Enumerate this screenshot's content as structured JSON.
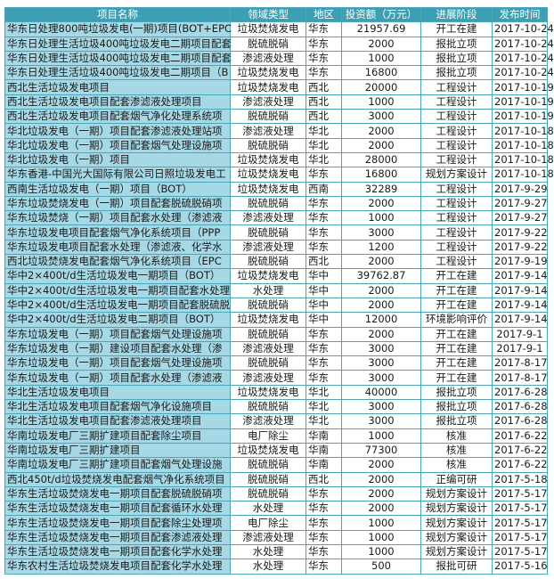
{
  "colors": {
    "header_bg": "#3d9fb3",
    "name_col_bg": "#a6d8e5",
    "border": "#4aa6b8"
  },
  "table": {
    "headers": [
      "项目名称",
      "领域类型",
      "地区",
      "投资额（万元）",
      "进展阶段",
      "发布时间"
    ],
    "rows": [
      [
        "华东日处理800吨垃圾发电(一期)项目(BOT+EPC",
        "垃圾焚烧发电",
        "华东",
        "21957.69",
        "开工在建",
        "2017-10-24"
      ],
      [
        "华东日处理生活垃圾400吨垃圾发电二期项目配套",
        "脱硫脱硝",
        "华东",
        "2000",
        "报批立项",
        "2017-10-24"
      ],
      [
        "华东日处理生活垃圾400吨垃圾发电二期项目配套",
        "渗滤液处理",
        "华东",
        "1000",
        "报批立项",
        "2017-10-24"
      ],
      [
        "华东日处理生活垃圾400吨垃圾发电二期项目（B",
        "垃圾焚烧发电",
        "华东",
        "16800",
        "报批立项",
        "2017-10-24"
      ],
      [
        "西北生活垃圾发电项目",
        "垃圾焚烧发电",
        "西北",
        "20000",
        "工程设计",
        "2017-10-19"
      ],
      [
        "西北生活垃圾发电项目配套渗滤液处理项目",
        "渗滤液处理",
        "西北",
        "1000",
        "工程设计",
        "2017-10-19"
      ],
      [
        "西北生活垃圾发电项目配套烟气净化处理系统项",
        "脱硫脱硝",
        "西北",
        "3000",
        "工程设计",
        "2017-10-19"
      ],
      [
        "华北垃圾发电（一期）项目配套渗滤液处理站项",
        "渗滤液处理",
        "华北",
        "2000",
        "工程设计",
        "2017-10-18"
      ],
      [
        "华北垃圾发电（一期）项目配套烟气处理设施项",
        "脱硫脱硝",
        "华北",
        "2000",
        "工程设计",
        "2017-10-18"
      ],
      [
        "华北垃圾发电（一期）项目",
        "垃圾焚烧发电",
        "华北",
        "28000",
        "工程设计",
        "2017-10-18"
      ],
      [
        "华东香港-中国光大国际有限公司日照垃圾发电工",
        "垃圾焚烧发电",
        "华东",
        "16800",
        "规划方案设计",
        "2017-10-18"
      ],
      [
        "西南生活垃圾发电（一期）项目（BOT）",
        "垃圾焚烧发电",
        "西南",
        "32289",
        "工程设计",
        "2017-9-29"
      ],
      [
        "华东垃圾焚烧发电（一期）项目配套脱硫脱硝项",
        "脱硫脱硝",
        "华东",
        "2000",
        "工程设计",
        "2017-9-27"
      ],
      [
        "华东垃圾焚烧（一期）项目配套水处理（渗滤液",
        "渗滤液处理",
        "华东",
        "1000",
        "工程设计",
        "2017-9-27"
      ],
      [
        "华东垃圾发电项目配套烟气净化系统项目（PPP",
        "脱硫脱硝",
        "华东",
        "3000",
        "工程设计",
        "2017-9-22"
      ],
      [
        "华东垃圾发电项目配套水处理（渗滤液、化学水",
        "渗滤液处理",
        "华东",
        "1200",
        "工程设计",
        "2017-9-22"
      ],
      [
        "西北垃圾焚烧发电配套烟气净化系统项目（EPC",
        "脱硫脱硝",
        "西北",
        "2000",
        "工程设计",
        "2017-9-19"
      ],
      [
        "华中2×400t/d生活垃圾发电一期项目（BOT）",
        "垃圾焚烧发电",
        "华中",
        "39762.87",
        "开工在建",
        "2017-9-14"
      ],
      [
        "华中2×400t/d生活垃圾发电一期项目配套水处理",
        "水处理",
        "华中",
        "2000",
        "开工在建",
        "2017-9-14"
      ],
      [
        "华中2×400t/d生活垃圾发电一期项目配套脱硫脱",
        "脱硫脱硝",
        "华中",
        "2000",
        "开工在建",
        "2017-9-14"
      ],
      [
        "华中2×400t/d生活垃圾发电二期项目（BOT）",
        "垃圾焚烧发电",
        "华中",
        "12000",
        "环境影响评价",
        "2017-9-14"
      ],
      [
        "华东垃圾发电（一期）项目配套烟气处理设施项",
        "脱硫脱硝",
        "华东",
        "2000",
        "开工在建",
        "2017-9-1"
      ],
      [
        "华东垃圾发电（一期）建设项目配套水处理（渗",
        "渗滤液处理",
        "华东",
        "3000",
        "开工在建",
        "2017-9-1"
      ],
      [
        "华东垃圾发电（一期）项目配套烟气处理设施项",
        "脱硫脱硝",
        "华东",
        "3000",
        "开工在建",
        "2017-8-17"
      ],
      [
        "华东垃圾发电（一期）项目配套水处理（渗滤液",
        "渗滤液处理",
        "华东",
        "3000",
        "开工在建",
        "2017-8-17"
      ],
      [
        "华北生活垃圾发电项目",
        "垃圾焚烧发电",
        "华北",
        "40000",
        "报批立项",
        "2017-6-28"
      ],
      [
        "华北生活垃圾发电项目配套烟气净化设施项目",
        "脱硫脱硝",
        "华北",
        "3000",
        "报批立项",
        "2017-6-28"
      ],
      [
        "华北生活垃圾发电项目配套渗滤液处理项目",
        "渗滤液处理",
        "华北",
        "3000",
        "报批立项",
        "2017-6-28"
      ],
      [
        "华南垃圾发电厂三期扩建项目配套除尘项目",
        "电厂除尘",
        "华南",
        "1000",
        "核准",
        "2017-6-22"
      ],
      [
        "华南垃圾发电厂三期扩建项目",
        "垃圾焚烧发电",
        "华南",
        "77300",
        "核准",
        "2017-6-22"
      ],
      [
        "华南垃圾发电厂三期扩建项目配套烟气处理设施",
        "脱硫脱硝",
        "华南",
        "2000",
        "核准",
        "2017-6-22"
      ],
      [
        "西北450t/d垃圾焚烧发电配套烟气净化系统项目",
        "脱硫脱硝",
        "西北",
        "2000",
        "正编可研",
        "2017-5-18"
      ],
      [
        "华东生活垃圾焚烧发电一期项目配套脱硫脱硝项",
        "脱硫脱硝",
        "华东",
        "2000",
        "规划方案设计",
        "2017-5-17"
      ],
      [
        "华东生活垃圾焚烧发电一期项目配套循环水处理",
        "水处理",
        "华东",
        "2000",
        "规划方案设计",
        "2017-5-17"
      ],
      [
        "华东生活垃圾焚烧发电一期项目配套除尘处理项",
        "电厂除尘",
        "华东",
        "1000",
        "规划方案设计",
        "2017-5-17"
      ],
      [
        "华东生活垃圾焚烧发电一期项目配套渗滤液处理",
        "渗滤液处理",
        "华东",
        "1000",
        "规划方案设计",
        "2017-5-17"
      ],
      [
        "华东生活垃圾焚烧发电一期项目配套化学水处理",
        "水处理",
        "华东",
        "1000",
        "规划方案设计",
        "2017-5-17"
      ],
      [
        "华东农村生活垃圾焚烧发电项目配套化学水处理",
        "水处理",
        "华东",
        "500",
        "报批可研",
        "2017-5-16"
      ]
    ]
  }
}
